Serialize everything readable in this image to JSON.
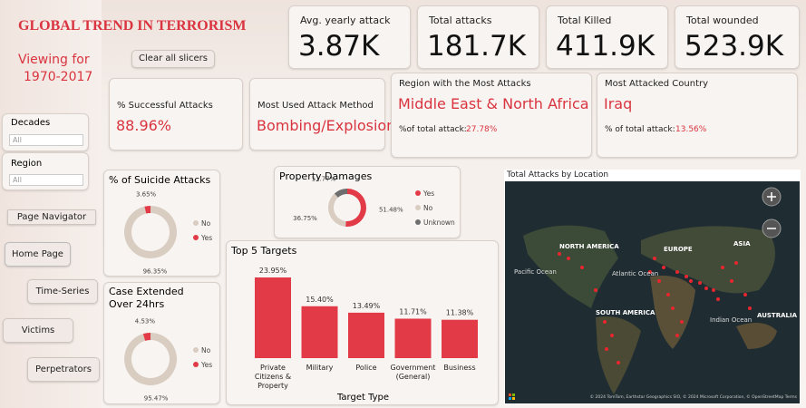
{
  "header": {
    "title": "GLOBAL TREND IN TERRORISM",
    "viewing_label": "Viewing for",
    "period": "1970-2017",
    "clear_button": "Clear all slicers"
  },
  "kpis": [
    {
      "label": "Avg. yearly attack",
      "value": "3.87K"
    },
    {
      "label": "Total attacks",
      "value": "181.7K"
    },
    {
      "label": "Total Killed",
      "value": "411.9K"
    },
    {
      "label": "Total wounded",
      "value": "523.9K"
    }
  ],
  "cards": {
    "success": {
      "label": "% Successful Attacks",
      "value": "88.96%"
    },
    "method": {
      "label": "Most Used Attack Method",
      "value": "Bombing/Explosion"
    },
    "region": {
      "label": "Region with the Most Attacks",
      "value": "Middle East & North Africa",
      "share_label": "%of total attack:",
      "share_value": "27.78%"
    },
    "country": {
      "label": "Most Attacked Country",
      "value": "Iraq",
      "share_label": "% of total attack:",
      "share_value": "13.56%"
    }
  },
  "slicers": [
    {
      "label": "Decades",
      "selection": "All"
    },
    {
      "label": "Region",
      "selection": "All"
    }
  ],
  "navigation": {
    "title": "Page Navigator",
    "buttons": [
      "Home Page",
      "Time-Series",
      "Victims",
      "Perpetrators"
    ]
  },
  "suicide_chart": {
    "type": "donut",
    "title": "% of Suicide Attacks",
    "categories": [
      "No",
      "Yes"
    ],
    "values": [
      96.35,
      3.65
    ],
    "value_labels": [
      "96.35%",
      "3.65%"
    ],
    "colors": [
      "#d9cdc1",
      "#e23b47"
    ]
  },
  "property_chart": {
    "type": "donut",
    "title": "Property Damages",
    "categories": [
      "Yes",
      "No",
      "Unknown"
    ],
    "values": [
      51.48,
      36.75,
      11.77
    ],
    "value_labels": [
      "51.48%",
      "36.75%",
      "11.77%"
    ],
    "colors": [
      "#e23b47",
      "#d9cdc1",
      "#6e6e6e"
    ]
  },
  "extended_chart": {
    "type": "donut",
    "title": "Case Extended Over 24hrs",
    "categories": [
      "No",
      "Yes"
    ],
    "values": [
      95.47,
      4.53
    ],
    "value_labels": [
      "95.47%",
      "4.53%"
    ],
    "colors": [
      "#d9cdc1",
      "#e23b47"
    ]
  },
  "targets_chart": {
    "type": "bar",
    "title": "Top 5 Targets",
    "x_label": "Target Type",
    "categories": [
      "Private Citizens & Property",
      "Military",
      "Police",
      "Government (General)",
      "Business"
    ],
    "values": [
      23.95,
      15.4,
      13.49,
      11.71,
      11.38
    ],
    "value_labels": [
      "23.95%",
      "15.40%",
      "13.49%",
      "11.71%",
      "11.38%"
    ],
    "color": "#e23b47"
  },
  "map": {
    "title": "Total Attacks by Location",
    "labels": [
      "NORTH AMERICA",
      "EUROPE",
      "ASIA",
      "Pacific Ocean",
      "Atlantic Ocean",
      "SOUTH AMERICA",
      "Indian Ocean",
      "AUSTRALIA"
    ],
    "attribution": "© 2024 TomTom, Earthstar Geographics SIO, © 2024 Microsoft Corporation, © OpenStreetMap Terms"
  }
}
